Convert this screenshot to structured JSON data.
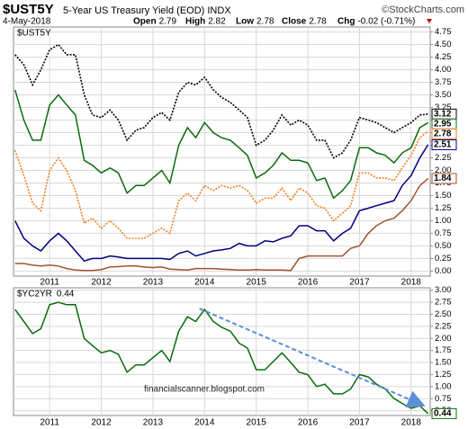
{
  "header": {
    "symbol": "$UST5Y",
    "description": "5-Year US Treasury Yield (EOD) INDX",
    "source": "©StockCharts.com",
    "date": "4-May-2018",
    "quote": [
      {
        "label": "Open",
        "value": 2.79
      },
      {
        "label": "High",
        "value": 2.82
      },
      {
        "label": "Low",
        "value": 2.78
      },
      {
        "label": "Close",
        "value": 2.78
      },
      {
        "label": "Chg",
        "value": "-0.02 (-0.71%)"
      }
    ]
  },
  "watermark": "financialscanner.blogspot.com",
  "chart_data": [
    {
      "type": "line",
      "x": [
        2010.33,
        2010.5,
        2010.67,
        2010.83,
        2011,
        2011.17,
        2011.33,
        2011.5,
        2011.67,
        2011.83,
        2012,
        2012.17,
        2012.33,
        2012.5,
        2012.67,
        2012.83,
        2013,
        2013.17,
        2013.33,
        2013.5,
        2013.67,
        2013.83,
        2014,
        2014.17,
        2014.33,
        2014.5,
        2014.67,
        2014.83,
        2015,
        2015.17,
        2015.33,
        2015.5,
        2015.67,
        2015.83,
        2016,
        2016.17,
        2016.33,
        2016.5,
        2016.67,
        2016.83,
        2017,
        2017.17,
        2017.33,
        2017.5,
        2017.67,
        2017.83,
        2018,
        2018.17,
        2018.33
      ],
      "xlim": [
        2010.3,
        2018.37
      ],
      "xticks": [
        2011,
        2012,
        2013,
        2014,
        2015,
        2016,
        2017,
        2018
      ],
      "ylim": [
        -0.1,
        4.85
      ],
      "yticks": [
        {
          "value": 0,
          "label": "0.00"
        },
        0.25,
        {
          "value": 0.5,
          "label": "0.50"
        },
        0.75,
        {
          "value": 1,
          "label": "1.00"
        },
        1.25,
        {
          "value": 1.5,
          "label": "1.50"
        },
        1.75,
        {
          "value": 2,
          "label": "2.00"
        },
        2.25,
        {
          "value": 2.5,
          "label": "2.50"
        },
        2.75,
        {
          "value": 3,
          "label": "3.00"
        },
        3.25,
        {
          "value": 3.5,
          "label": "3.50"
        },
        3.75,
        {
          "value": 4,
          "label": "4.00"
        },
        4.25,
        {
          "value": 4.5,
          "label": "4.50"
        },
        4.75
      ],
      "grid": true,
      "series": [
        {
          "color": "#000000",
          "style": "dotted",
          "values": [
            4.3,
            4.1,
            3.7,
            4.0,
            4.4,
            4.5,
            4.3,
            4.3,
            3.5,
            3.1,
            3.05,
            3.2,
            3.0,
            2.6,
            2.8,
            2.85,
            3.05,
            3.15,
            3.0,
            3.55,
            3.75,
            3.7,
            3.85,
            3.6,
            3.45,
            3.35,
            3.2,
            3.05,
            2.5,
            2.6,
            2.8,
            3.1,
            2.9,
            3.0,
            2.9,
            2.6,
            2.6,
            2.25,
            2.35,
            2.6,
            3.05,
            3.0,
            2.95,
            2.85,
            2.75,
            2.85,
            2.95,
            3.1,
            3.12
          ]
        },
        {
          "color": "#0b6b0b",
          "style": "solid",
          "values": [
            3.6,
            3.0,
            2.6,
            2.6,
            3.3,
            3.5,
            3.3,
            3.1,
            2.2,
            2.1,
            1.95,
            2.05,
            1.95,
            1.55,
            1.7,
            1.7,
            1.85,
            2.0,
            1.75,
            2.5,
            2.85,
            2.65,
            2.95,
            2.75,
            2.65,
            2.6,
            2.45,
            2.3,
            1.85,
            1.95,
            2.1,
            2.35,
            2.2,
            2.2,
            2.15,
            1.8,
            1.85,
            1.45,
            1.6,
            1.8,
            2.45,
            2.45,
            2.35,
            2.3,
            2.15,
            2.35,
            2.45,
            2.85,
            2.95
          ]
        },
        {
          "name": "$UST5Y",
          "color": "#f08020",
          "style": "dotted",
          "values": [
            2.4,
            1.9,
            1.35,
            1.2,
            2.0,
            2.25,
            2.0,
            1.6,
            0.95,
            1.05,
            0.85,
            1.0,
            0.85,
            0.65,
            0.65,
            0.65,
            0.75,
            0.85,
            0.75,
            1.4,
            1.55,
            1.4,
            1.7,
            1.6,
            1.7,
            1.65,
            1.7,
            1.6,
            1.35,
            1.45,
            1.45,
            1.65,
            1.4,
            1.65,
            1.55,
            1.3,
            1.25,
            1.0,
            1.15,
            1.3,
            1.95,
            1.95,
            1.85,
            1.85,
            1.8,
            2.05,
            2.3,
            2.65,
            2.78
          ]
        },
        {
          "color": "#000080",
          "style": "solid",
          "values": [
            1.0,
            0.65,
            0.5,
            0.4,
            0.6,
            0.75,
            0.6,
            0.4,
            0.2,
            0.25,
            0.25,
            0.3,
            0.28,
            0.25,
            0.25,
            0.25,
            0.25,
            0.25,
            0.23,
            0.35,
            0.4,
            0.3,
            0.35,
            0.4,
            0.42,
            0.45,
            0.55,
            0.5,
            0.5,
            0.6,
            0.58,
            0.65,
            0.7,
            0.9,
            0.9,
            0.8,
            0.8,
            0.6,
            0.75,
            0.85,
            1.2,
            1.25,
            1.3,
            1.35,
            1.4,
            1.7,
            1.9,
            2.25,
            2.51
          ]
        },
        {
          "color": "#a0522d",
          "style": "solid",
          "values": [
            0.15,
            0.15,
            0.12,
            0.1,
            0.12,
            0.1,
            0.05,
            0.02,
            0.01,
            0.01,
            0.03,
            0.08,
            0.09,
            0.1,
            0.1,
            0.08,
            0.07,
            0.08,
            0.04,
            0.03,
            0.02,
            0.05,
            0.05,
            0.05,
            0.04,
            0.03,
            0.02,
            0.02,
            0.03,
            0.02,
            0.02,
            0.02,
            0.01,
            0.25,
            0.3,
            0.3,
            0.3,
            0.3,
            0.3,
            0.45,
            0.5,
            0.75,
            0.9,
            1.0,
            1.05,
            1.2,
            1.4,
            1.7,
            1.84
          ]
        }
      ]
    },
    {
      "type": "line",
      "x": [
        2010.33,
        2010.5,
        2010.67,
        2010.83,
        2011,
        2011.17,
        2011.33,
        2011.5,
        2011.67,
        2011.83,
        2012,
        2012.17,
        2012.33,
        2012.5,
        2012.67,
        2012.83,
        2013,
        2013.17,
        2013.33,
        2013.5,
        2013.67,
        2013.83,
        2014,
        2014.17,
        2014.33,
        2014.5,
        2014.67,
        2014.83,
        2015,
        2015.17,
        2015.33,
        2015.5,
        2015.67,
        2015.83,
        2016,
        2016.17,
        2016.33,
        2016.5,
        2016.67,
        2016.83,
        2017,
        2017.17,
        2017.33,
        2017.5,
        2017.67,
        2017.83,
        2018,
        2018.17,
        2018.33
      ],
      "xlim": [
        2010.3,
        2018.37
      ],
      "xticks": [
        2011,
        2012,
        2013,
        2014,
        2015,
        2016,
        2017,
        2018
      ],
      "ylim": [
        0.4,
        3.05
      ],
      "yticks": [
        {
          "value": 0.5,
          "label": "0.50"
        },
        0.75,
        {
          "value": 1,
          "label": "1.00"
        },
        1.25,
        {
          "value": 1.5,
          "label": "1.50"
        },
        1.75,
        {
          "value": 2,
          "label": "2.00"
        },
        2.25,
        {
          "value": 2.5,
          "label": "2.50"
        },
        2.75,
        {
          "value": 3,
          "label": "3.00"
        }
      ],
      "grid": true,
      "series": [
        {
          "name": "$YC2YR",
          "color": "#0b6b0b",
          "style": "solid",
          "values": [
            2.6,
            2.35,
            2.1,
            2.2,
            2.7,
            2.75,
            2.7,
            2.7,
            2.0,
            1.85,
            1.7,
            1.75,
            1.67,
            1.3,
            1.45,
            1.45,
            1.6,
            1.75,
            1.52,
            2.15,
            2.45,
            2.35,
            2.6,
            2.35,
            2.23,
            2.15,
            1.9,
            1.8,
            1.35,
            1.35,
            1.52,
            1.7,
            1.5,
            1.3,
            1.25,
            1.0,
            1.05,
            0.85,
            0.85,
            0.95,
            1.25,
            1.2,
            1.05,
            0.95,
            0.75,
            0.65,
            0.55,
            0.6,
            0.44
          ]
        }
      ],
      "trendline": {
        "x": [
          2013.9,
          2018.15
        ],
        "values": [
          2.62,
          0.65
        ],
        "color": "#5b8fd6"
      }
    }
  ]
}
